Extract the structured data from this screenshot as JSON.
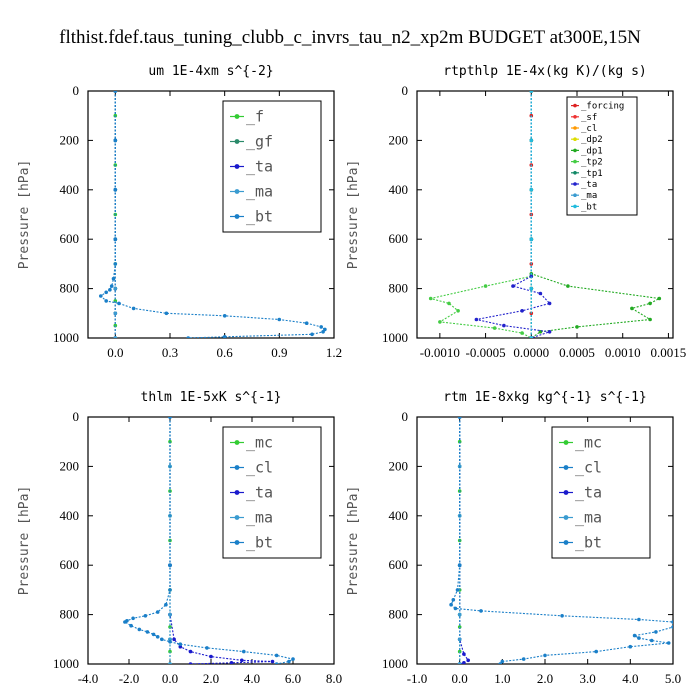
{
  "figure_title": "flthist.fdef.taus_tuning_clubb_c_invrs_tau_n2_xp2m  BUDGET at300E,15N",
  "chart_data": [
    {
      "type": "line",
      "title": "um  1E-4xm s^{-2}",
      "ylabel": "Pressure [hPa]",
      "xlim": [
        -0.15,
        1.2
      ],
      "ylim": [
        1000,
        0
      ],
      "xticks": [
        "0.0",
        "0.3",
        "0.6",
        "0.9",
        "1.2"
      ],
      "xtick_values": [
        0.0,
        0.3,
        0.6,
        0.9,
        1.2
      ],
      "yticks": [
        "0",
        "200",
        "400",
        "600",
        "800",
        "1000"
      ],
      "ytick_values": [
        0,
        200,
        400,
        600,
        800,
        1000
      ],
      "legend_style": "large",
      "series": [
        {
          "name": "_f",
          "color": "#33cc33",
          "x": [
            0,
            0,
            0,
            0,
            0,
            0,
            0,
            0,
            0,
            0,
            0,
            0,
            0
          ],
          "y": [
            0,
            100,
            200,
            300,
            400,
            500,
            600,
            700,
            800,
            850,
            900,
            950,
            1000
          ]
        },
        {
          "name": "_gf",
          "color": "#2a8a6a",
          "x": [
            0,
            0,
            0,
            0,
            0,
            0,
            0
          ],
          "y": [
            0,
            200,
            400,
            600,
            800,
            900,
            1000
          ]
        },
        {
          "name": "_ta",
          "color": "#1a1acc",
          "x": [
            0,
            0,
            0,
            0,
            0,
            0,
            0
          ],
          "y": [
            0,
            200,
            400,
            600,
            800,
            900,
            1000
          ]
        },
        {
          "name": "_ma",
          "color": "#3a9bd0",
          "x": [
            0,
            0,
            0,
            0,
            0,
            0,
            0
          ],
          "y": [
            0,
            200,
            400,
            600,
            800,
            900,
            1000
          ]
        },
        {
          "name": "_bt",
          "color": "#1a7fc8",
          "x": [
            0.0,
            0.0,
            0.0,
            0.0,
            0.0,
            -0.01,
            -0.02,
            -0.03,
            -0.05,
            -0.08,
            -0.05,
            0.02,
            0.1,
            0.28,
            0.6,
            0.9,
            1.05,
            1.13,
            1.15,
            1.14,
            1.08,
            0.6,
            0.4
          ],
          "y": [
            0,
            200,
            400,
            600,
            700,
            760,
            790,
            805,
            815,
            830,
            850,
            860,
            880,
            900,
            910,
            925,
            940,
            955,
            965,
            975,
            985,
            995,
            1000
          ]
        }
      ]
    },
    {
      "type": "line",
      "title": "rtpthlp  1E-4x(kg K)/(kg s)",
      "ylabel": "Pressure [hPa]",
      "xlim": [
        -0.00125,
        0.00155
      ],
      "ylim": [
        1000,
        0
      ],
      "xticks": [
        "-0.0010",
        "-0.0005",
        "0.0000",
        "0.0005",
        "0.0010",
        "0.0015"
      ],
      "xtick_values": [
        -0.001,
        -0.0005,
        0.0,
        0.0005,
        0.001,
        0.0015
      ],
      "yticks": [
        "0",
        "200",
        "400",
        "600",
        "800",
        "1000"
      ],
      "ytick_values": [
        0,
        200,
        400,
        600,
        800,
        1000
      ],
      "legend_style": "small",
      "series": [
        {
          "name": "_forcing",
          "color": "#dd2222",
          "x": [
            0,
            0,
            0,
            0,
            0,
            0,
            0,
            0,
            0,
            0,
            0
          ],
          "y": [
            0,
            100,
            200,
            300,
            400,
            500,
            600,
            700,
            800,
            900,
            1000
          ]
        },
        {
          "name": "_sf",
          "color": "#ee3333",
          "x": [
            0,
            0,
            0,
            0,
            0,
            0
          ],
          "y": [
            0,
            200,
            400,
            600,
            800,
            1000
          ]
        },
        {
          "name": "_cl",
          "color": "#ff9900",
          "x": [
            0,
            0,
            0,
            0,
            0,
            0
          ],
          "y": [
            0,
            200,
            400,
            600,
            800,
            1000
          ]
        },
        {
          "name": "_dp2",
          "color": "#dddd00",
          "x": [
            0,
            0,
            0,
            0,
            0,
            0
          ],
          "y": [
            0,
            200,
            400,
            600,
            800,
            1000
          ]
        },
        {
          "name": "_dp1",
          "color": "#22aa22",
          "x": [
            0,
            0,
            0,
            0.0004,
            0.0014,
            0.0013,
            0.0011,
            0.0013,
            0.0005,
            0.0001,
            0
          ],
          "y": [
            0,
            600,
            740,
            790,
            840,
            860,
            880,
            925,
            955,
            975,
            1000
          ]
        },
        {
          "name": "_tp2",
          "color": "#44cc44",
          "x": [
            0,
            0,
            0,
            -0.0005,
            -0.0011,
            -0.0009,
            -0.0008,
            -0.001,
            -0.0004,
            -0.0001,
            0
          ],
          "y": [
            0,
            600,
            750,
            790,
            840,
            860,
            890,
            935,
            960,
            980,
            1000
          ]
        },
        {
          "name": "_tp1",
          "color": "#118866",
          "x": [
            0,
            0,
            0,
            0,
            0,
            0
          ],
          "y": [
            0,
            200,
            400,
            600,
            800,
            1000
          ]
        },
        {
          "name": "_ta",
          "color": "#2222cc",
          "x": [
            0,
            0,
            0,
            -0.0002,
            0.0001,
            0.0002,
            -0.0001,
            -0.0006,
            -0.0003,
            0.0002,
            0
          ],
          "y": [
            0,
            600,
            750,
            790,
            820,
            860,
            890,
            925,
            950,
            975,
            1000
          ]
        },
        {
          "name": "_ma",
          "color": "#3a9bd0",
          "x": [
            0,
            0,
            0,
            0,
            0,
            0
          ],
          "y": [
            0,
            200,
            400,
            600,
            800,
            1000
          ]
        },
        {
          "name": "_bt",
          "color": "#22bbdd",
          "x": [
            0,
            0,
            0,
            0,
            0,
            0
          ],
          "y": [
            0,
            200,
            400,
            600,
            800,
            1000
          ]
        }
      ]
    },
    {
      "type": "line",
      "title": "thlm  1E-5xK s^{-1}",
      "ylabel": "Pressure [hPa]",
      "xlim": [
        -4.0,
        8.0
      ],
      "ylim": [
        1000,
        0
      ],
      "xticks": [
        "-4.0",
        "-2.0",
        "0.0",
        "2.0",
        "4.0",
        "6.0",
        "8.0"
      ],
      "xtick_values": [
        -4.0,
        -2.0,
        0.0,
        2.0,
        4.0,
        6.0,
        8.0
      ],
      "yticks": [
        "0",
        "200",
        "400",
        "600",
        "800",
        "1000"
      ],
      "ytick_values": [
        0,
        200,
        400,
        600,
        800,
        1000
      ],
      "legend_style": "large",
      "series": [
        {
          "name": "_mc",
          "color": "#33cc33",
          "x": [
            0,
            0,
            0,
            0,
            0,
            0,
            0,
            0,
            0,
            0,
            0,
            0,
            0
          ],
          "y": [
            0,
            100,
            200,
            300,
            400,
            500,
            600,
            700,
            800,
            850,
            900,
            950,
            1000
          ]
        },
        {
          "name": "_cl",
          "color": "#1a7fc8",
          "x": [
            0,
            0,
            0,
            0,
            0,
            0,
            0
          ],
          "y": [
            0,
            200,
            400,
            600,
            800,
            900,
            1000
          ]
        },
        {
          "name": "_ta",
          "color": "#1a1acc",
          "x": [
            0,
            0,
            0,
            0.2,
            0.5,
            1.0,
            2.0,
            3.5,
            5.0,
            3.0,
            1.0
          ],
          "y": [
            0,
            600,
            800,
            900,
            930,
            950,
            970,
            985,
            990,
            995,
            1000
          ]
        },
        {
          "name": "_ma",
          "color": "#3a9bd0",
          "x": [
            0,
            0,
            0,
            0,
            0,
            0,
            0
          ],
          "y": [
            0,
            200,
            400,
            600,
            800,
            900,
            1000
          ]
        },
        {
          "name": "_bt",
          "color": "#1a7fc8",
          "x": [
            0,
            0,
            0,
            -0.2,
            -0.6,
            -1.2,
            -1.8,
            -2.1,
            -2.2,
            -1.9,
            -1.5,
            -1.1,
            -0.8,
            -0.6,
            -0.4,
            0.0,
            0.5,
            1.8,
            3.6,
            5.2,
            6.0,
            5.8,
            5.2
          ],
          "y": [
            0,
            600,
            700,
            760,
            790,
            805,
            815,
            825,
            830,
            845,
            860,
            870,
            880,
            890,
            900,
            910,
            920,
            935,
            950,
            965,
            980,
            990,
            1000
          ]
        }
      ]
    },
    {
      "type": "line",
      "title": "rtm  1E-8xkg kg^{-1} s^{-1}",
      "ylabel": "Pressure [hPa]",
      "xlim": [
        -1.0,
        5.0
      ],
      "ylim": [
        1000,
        0
      ],
      "xticks": [
        "-1.0",
        "0.0",
        "1.0",
        "2.0",
        "3.0",
        "4.0",
        "5.0"
      ],
      "xtick_values": [
        -1.0,
        0.0,
        1.0,
        2.0,
        3.0,
        4.0,
        5.0
      ],
      "yticks": [
        "0",
        "200",
        "400",
        "600",
        "800",
        "1000"
      ],
      "ytick_values": [
        0,
        200,
        400,
        600,
        800,
        1000
      ],
      "legend_style": "large",
      "series": [
        {
          "name": "_mc",
          "color": "#33cc33",
          "x": [
            0,
            0,
            0,
            0,
            0,
            0,
            0,
            0,
            0,
            0,
            0,
            0,
            0
          ],
          "y": [
            0,
            100,
            200,
            300,
            400,
            500,
            600,
            700,
            800,
            850,
            900,
            950,
            1000
          ]
        },
        {
          "name": "_cl",
          "color": "#1a7fc8",
          "x": [
            0,
            0,
            0,
            0,
            0,
            0,
            0
          ],
          "y": [
            0,
            200,
            400,
            600,
            800,
            900,
            1000
          ]
        },
        {
          "name": "_ta",
          "color": "#1a1acc",
          "x": [
            0,
            0,
            0,
            0.1,
            0.2,
            0.1,
            0.0
          ],
          "y": [
            0,
            600,
            900,
            960,
            985,
            995,
            1000
          ]
        },
        {
          "name": "_ma",
          "color": "#3a9bd0",
          "x": [
            0,
            0,
            0,
            0,
            0,
            0,
            0
          ],
          "y": [
            0,
            200,
            400,
            600,
            800,
            900,
            1000
          ]
        },
        {
          "name": "_bt",
          "color": "#1a7fc8",
          "x": [
            0,
            0,
            -0.05,
            -0.15,
            -0.2,
            -0.1,
            0.5,
            2.4,
            4.2,
            5.0,
            5.0,
            4.6,
            4.1,
            4.2,
            4.5,
            4.9,
            4.0,
            3.2,
            2.0,
            1.5,
            1.0,
            0.95
          ],
          "y": [
            0,
            600,
            700,
            740,
            760,
            775,
            785,
            805,
            820,
            830,
            850,
            870,
            885,
            895,
            905,
            915,
            930,
            950,
            965,
            980,
            990,
            1000
          ]
        }
      ]
    }
  ]
}
